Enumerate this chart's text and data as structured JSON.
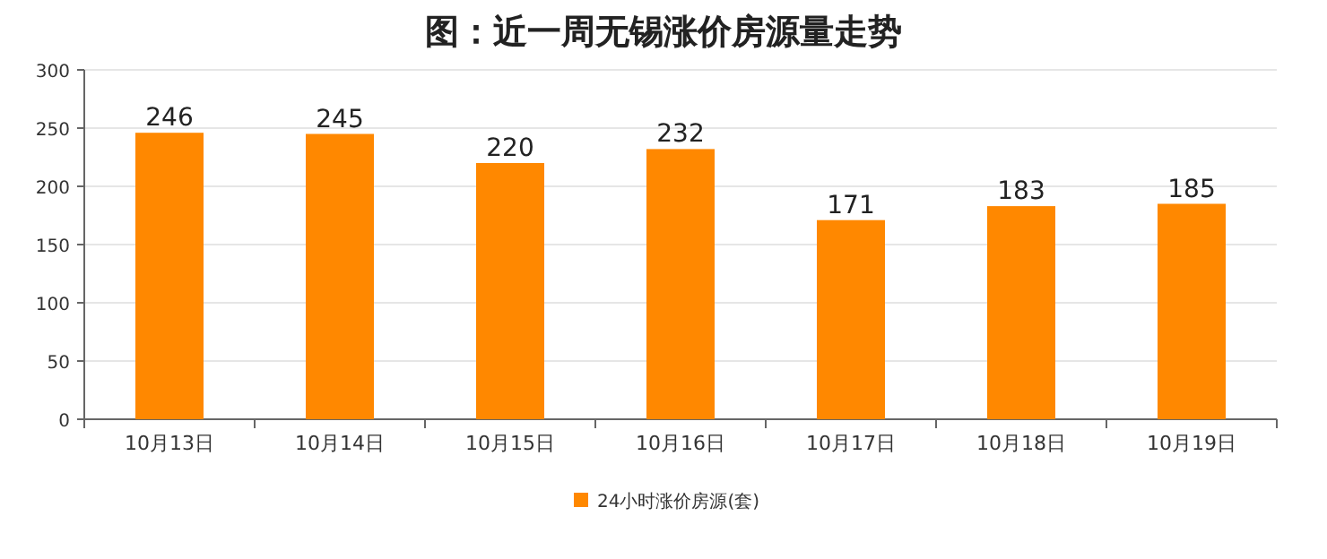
{
  "chart_data": {
    "type": "bar",
    "title": "图：近一周无锡涨价房源量走势",
    "categories": [
      "10月13日",
      "10月14日",
      "10月15日",
      "10月16日",
      "10月17日",
      "10月18日",
      "10月19日"
    ],
    "series": [
      {
        "name": "24小时涨价房源(套)",
        "color": "#ff8800",
        "values": [
          246,
          245,
          220,
          232,
          171,
          183,
          185
        ]
      }
    ],
    "ylim": [
      0,
      300
    ],
    "yticks": [
      0,
      50,
      100,
      150,
      200,
      250,
      300
    ],
    "grid": "y",
    "legend": "bottom",
    "data_labels": true
  }
}
